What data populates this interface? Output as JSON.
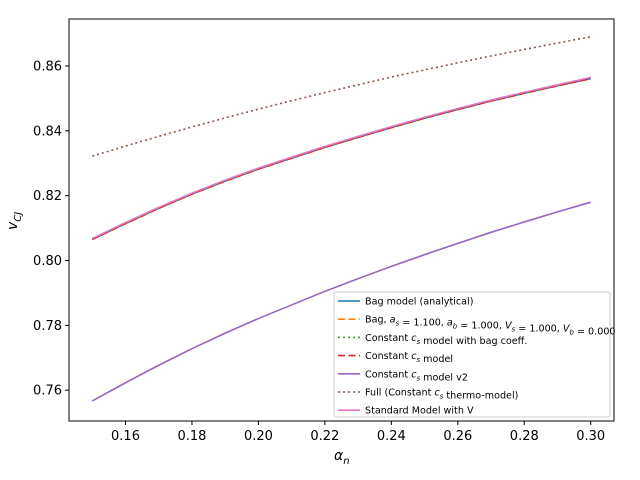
{
  "chart_data": {
    "type": "line",
    "xlabel": "α_n",
    "ylabel": "v_CJ",
    "xlim": [
      0.143,
      0.307
    ],
    "ylim": [
      0.7505,
      0.8745
    ],
    "xticks": [
      0.16,
      0.18,
      0.2,
      0.22,
      0.24,
      0.26,
      0.28,
      0.3
    ],
    "xtick_labels": [
      "0.16",
      "0.18",
      "0.20",
      "0.22",
      "0.24",
      "0.26",
      "0.28",
      "0.30"
    ],
    "yticks": [
      0.76,
      0.78,
      0.8,
      0.82,
      0.84,
      0.86
    ],
    "ytick_labels": [
      "0.76",
      "0.78",
      "0.80",
      "0.82",
      "0.84",
      "0.86"
    ],
    "grid": false,
    "legend_position": "lower-right",
    "x": [
      0.15,
      0.16,
      0.17,
      0.18,
      0.19,
      0.2,
      0.21,
      0.22,
      0.23,
      0.24,
      0.25,
      0.26,
      0.27,
      0.28,
      0.29,
      0.3
    ],
    "series": [
      {
        "name": "Bag model (analytical)",
        "color": "#1f77b4",
        "dash": "solid",
        "values": [
          0.8065,
          0.8114,
          0.8161,
          0.8205,
          0.8245,
          0.8282,
          0.8316,
          0.8349,
          0.838,
          0.841,
          0.8439,
          0.8466,
          0.8492,
          0.8516,
          0.8539,
          0.8561
        ]
      },
      {
        "name": "Bag, a_s = 1.100, a_b = 1.000, V_s = 1.000, V_b = 0.000",
        "color": "#ff7f0e",
        "dash": "dashed",
        "values": [
          0.8065,
          0.8114,
          0.8161,
          0.8205,
          0.8245,
          0.8282,
          0.8316,
          0.8349,
          0.838,
          0.841,
          0.8439,
          0.8466,
          0.8492,
          0.8516,
          0.8539,
          0.8561
        ]
      },
      {
        "name": "Constant c_s model with bag coeff.",
        "color": "#2ca02c",
        "dash": "dotted",
        "values": [
          0.8065,
          0.8114,
          0.8161,
          0.8205,
          0.8245,
          0.8282,
          0.8316,
          0.8349,
          0.838,
          0.841,
          0.8439,
          0.8466,
          0.8492,
          0.8516,
          0.8539,
          0.8561
        ]
      },
      {
        "name": "Constant c_s model",
        "color": "#d62728",
        "dash": "dashed",
        "values": [
          0.8065,
          0.8114,
          0.8161,
          0.8205,
          0.8245,
          0.8282,
          0.8316,
          0.8349,
          0.838,
          0.841,
          0.8439,
          0.8466,
          0.8492,
          0.8516,
          0.8539,
          0.8561
        ]
      },
      {
        "name": "Constant c_s model v2",
        "color": "#9467bd",
        "dash": "solid",
        "values": [
          0.7567,
          0.7623,
          0.7677,
          0.7728,
          0.7776,
          0.7821,
          0.7863,
          0.7905,
          0.7944,
          0.7982,
          0.8018,
          0.8053,
          0.8087,
          0.8119,
          0.815,
          0.818
        ]
      },
      {
        "name": "Full (Constant c_s thermo-model)",
        "color": "#8c564b",
        "dash": "dotted",
        "values": [
          0.8322,
          0.8353,
          0.8383,
          0.8412,
          0.844,
          0.8467,
          0.8493,
          0.8518,
          0.8542,
          0.8566,
          0.8588,
          0.861,
          0.8631,
          0.8651,
          0.8671,
          0.869
        ]
      },
      {
        "name": "Standard Model with V",
        "color": "#e377c2",
        "dash": "solid",
        "values": [
          0.8068,
          0.8117,
          0.8164,
          0.8208,
          0.8248,
          0.8285,
          0.8319,
          0.8352,
          0.8383,
          0.8413,
          0.8442,
          0.8469,
          0.8495,
          0.8519,
          0.8542,
          0.8565
        ]
      }
    ]
  }
}
